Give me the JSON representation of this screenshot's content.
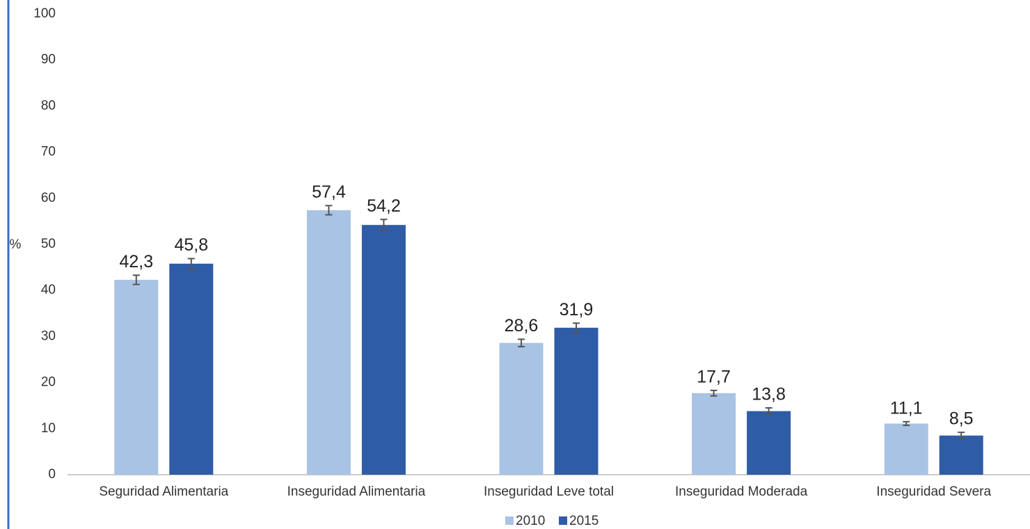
{
  "chart_data": {
    "type": "bar",
    "y_label": "%",
    "categories": [
      "Seguridad Alimentaria",
      "Inseguridad Alimentaria",
      "Inseguridad Leve total",
      "Inseguridad Moderada",
      "Inseguridad Severa"
    ],
    "series": [
      {
        "name": "2010",
        "color": "#a9c3e4",
        "values": [
          42.3,
          57.4,
          28.6,
          17.7,
          11.1
        ],
        "value_labels": [
          "42,3",
          "57,4",
          "28,6",
          "17,7",
          "11,1"
        ],
        "errors": [
          1.0,
          1.0,
          0.8,
          0.6,
          0.4
        ]
      },
      {
        "name": "2015",
        "color": "#2f5ca6",
        "values": [
          45.8,
          54.2,
          31.9,
          13.8,
          8.5
        ],
        "value_labels": [
          "45,8",
          "54,2",
          "31,9",
          "13,8",
          "8,5"
        ],
        "errors": [
          1.1,
          1.2,
          1.0,
          0.7,
          0.7
        ]
      }
    ],
    "ylim": [
      0,
      100
    ],
    "yticks": [
      0,
      10,
      20,
      30,
      40,
      50,
      60,
      70,
      80,
      90,
      100
    ],
    "grid": false,
    "legend": "bottom"
  }
}
